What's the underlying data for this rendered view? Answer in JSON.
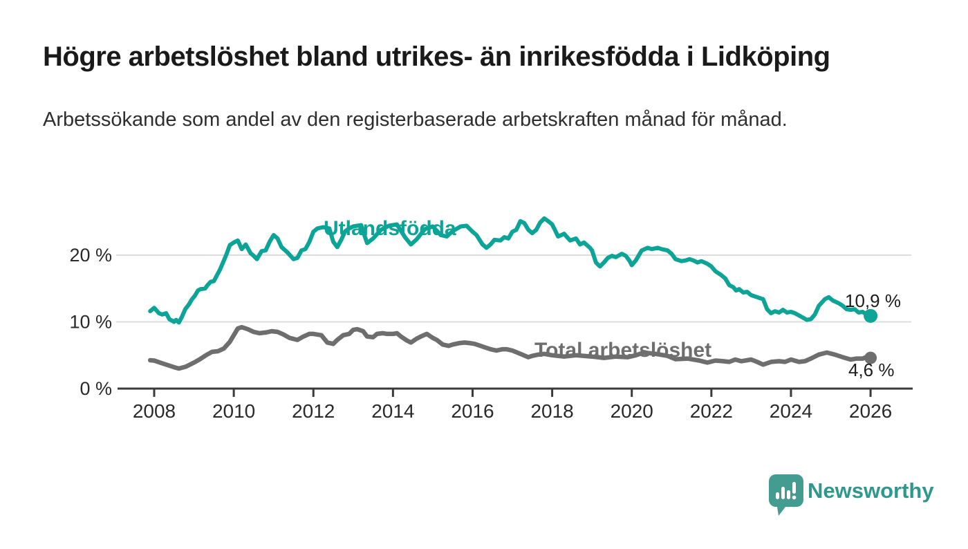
{
  "header": {
    "title": "Högre arbetslöshet bland utrikes- än inrikesfödda i Lidköping",
    "subtitle": "Arbetssökande som andel av den registerbaserade arbetskraften månad för månad."
  },
  "footer": {
    "brand": "Newsworthy"
  },
  "colors": {
    "accent_teal": "#0ca496",
    "series_gray": "#6e6e6e",
    "gridline": "#dcdcdc",
    "axis": "#3a3a3a",
    "brand_teal": "#449c91"
  },
  "chart_data": {
    "type": "line",
    "title": "Högre arbetslöshet bland utrikes- än inrikesfödda i Lidköping",
    "subtitle": "Arbetssökande som andel av den registerbaserade arbetskraften månad för månad.",
    "grid": "horizontal-only",
    "legend": "inline-labels-on-lines",
    "x_axis": {
      "range": [
        2007.7,
        2027.0
      ],
      "ticks": [
        2008,
        2010,
        2012,
        2014,
        2016,
        2018,
        2020,
        2022,
        2024,
        2026
      ],
      "tick_labels": [
        "2008",
        "2010",
        "2012",
        "2014",
        "2016",
        "2018",
        "2020",
        "2022",
        "2024",
        "2026"
      ]
    },
    "y_axis": {
      "unit": "%",
      "range": [
        0,
        27
      ],
      "ticks": [
        0,
        10,
        20
      ],
      "tick_labels": [
        "0 %",
        "10 %",
        "20 %"
      ]
    },
    "series": [
      {
        "name": "Utlandsfödda",
        "color": "#0ca496",
        "line_width": 6,
        "end_value": 10.9,
        "end_value_label": "10,9 %",
        "points": [
          [
            2007.9,
            11.6
          ],
          [
            2008.0,
            12.1
          ],
          [
            2008.12,
            11.3
          ],
          [
            2008.2,
            11.1
          ],
          [
            2008.3,
            11.3
          ],
          [
            2008.38,
            10.4
          ],
          [
            2008.5,
            10.0
          ],
          [
            2008.55,
            10.3
          ],
          [
            2008.62,
            9.9
          ],
          [
            2008.7,
            10.8
          ],
          [
            2008.78,
            11.9
          ],
          [
            2008.87,
            12.6
          ],
          [
            2008.95,
            13.4
          ],
          [
            2009.02,
            13.9
          ],
          [
            2009.1,
            14.7
          ],
          [
            2009.16,
            14.9
          ],
          [
            2009.28,
            15.0
          ],
          [
            2009.34,
            15.5
          ],
          [
            2009.42,
            16.0
          ],
          [
            2009.5,
            16.1
          ],
          [
            2009.56,
            16.8
          ],
          [
            2009.65,
            17.8
          ],
          [
            2009.73,
            18.9
          ],
          [
            2009.82,
            20.2
          ],
          [
            2009.9,
            21.5
          ],
          [
            2010.0,
            21.9
          ],
          [
            2010.1,
            22.2
          ],
          [
            2010.2,
            20.9
          ],
          [
            2010.3,
            21.6
          ],
          [
            2010.42,
            20.3
          ],
          [
            2010.5,
            19.9
          ],
          [
            2010.58,
            19.4
          ],
          [
            2010.7,
            20.6
          ],
          [
            2010.8,
            20.7
          ],
          [
            2010.9,
            22.0
          ],
          [
            2011.0,
            23.0
          ],
          [
            2011.1,
            22.5
          ],
          [
            2011.2,
            21.2
          ],
          [
            2011.35,
            20.4
          ],
          [
            2011.5,
            19.4
          ],
          [
            2011.6,
            19.6
          ],
          [
            2011.7,
            20.7
          ],
          [
            2011.8,
            20.9
          ],
          [
            2011.9,
            22.0
          ],
          [
            2012.0,
            23.5
          ],
          [
            2012.1,
            24.0
          ],
          [
            2012.25,
            24.2
          ],
          [
            2012.4,
            24.0
          ],
          [
            2012.5,
            22.0
          ],
          [
            2012.6,
            21.2
          ],
          [
            2012.7,
            22.3
          ],
          [
            2012.8,
            23.6
          ],
          [
            2012.9,
            24.0
          ],
          [
            2013.0,
            24.3
          ],
          [
            2013.2,
            24.5
          ],
          [
            2013.35,
            21.8
          ],
          [
            2013.5,
            22.5
          ],
          [
            2013.7,
            23.8
          ],
          [
            2013.9,
            24.4
          ],
          [
            2014.1,
            24.6
          ],
          [
            2014.3,
            22.7
          ],
          [
            2014.45,
            21.6
          ],
          [
            2014.6,
            22.4
          ],
          [
            2014.8,
            23.9
          ],
          [
            2015.0,
            24.3
          ],
          [
            2015.2,
            23.0
          ],
          [
            2015.35,
            22.8
          ],
          [
            2015.5,
            23.6
          ],
          [
            2015.7,
            24.3
          ],
          [
            2015.85,
            24.4
          ],
          [
            2016.0,
            23.5
          ],
          [
            2016.1,
            23.0
          ],
          [
            2016.25,
            21.6
          ],
          [
            2016.35,
            21.1
          ],
          [
            2016.45,
            21.6
          ],
          [
            2016.55,
            22.3
          ],
          [
            2016.7,
            22.2
          ],
          [
            2016.8,
            22.7
          ],
          [
            2016.9,
            22.5
          ],
          [
            2017.0,
            23.5
          ],
          [
            2017.1,
            23.8
          ],
          [
            2017.2,
            25.1
          ],
          [
            2017.3,
            24.8
          ],
          [
            2017.4,
            23.8
          ],
          [
            2017.5,
            23.3
          ],
          [
            2017.6,
            23.8
          ],
          [
            2017.7,
            24.9
          ],
          [
            2017.8,
            25.5
          ],
          [
            2017.9,
            25.1
          ],
          [
            2018.0,
            24.6
          ],
          [
            2018.15,
            22.8
          ],
          [
            2018.3,
            23.2
          ],
          [
            2018.45,
            22.2
          ],
          [
            2018.6,
            22.5
          ],
          [
            2018.7,
            21.6
          ],
          [
            2018.8,
            21.9
          ],
          [
            2018.95,
            21.1
          ],
          [
            2019.0,
            20.7
          ],
          [
            2019.1,
            18.9
          ],
          [
            2019.2,
            18.3
          ],
          [
            2019.3,
            18.9
          ],
          [
            2019.4,
            19.6
          ],
          [
            2019.5,
            19.9
          ],
          [
            2019.6,
            19.7
          ],
          [
            2019.75,
            20.2
          ],
          [
            2019.85,
            19.9
          ],
          [
            2019.95,
            19.1
          ],
          [
            2020.0,
            18.5
          ],
          [
            2020.1,
            19.2
          ],
          [
            2020.25,
            20.7
          ],
          [
            2020.4,
            21.1
          ],
          [
            2020.5,
            20.9
          ],
          [
            2020.65,
            21.1
          ],
          [
            2020.75,
            20.9
          ],
          [
            2020.9,
            20.7
          ],
          [
            2021.0,
            20.2
          ],
          [
            2021.1,
            19.4
          ],
          [
            2021.25,
            19.1
          ],
          [
            2021.35,
            19.2
          ],
          [
            2021.45,
            19.4
          ],
          [
            2021.55,
            19.2
          ],
          [
            2021.65,
            18.9
          ],
          [
            2021.75,
            19.1
          ],
          [
            2021.9,
            18.7
          ],
          [
            2022.0,
            18.3
          ],
          [
            2022.1,
            17.6
          ],
          [
            2022.25,
            17.0
          ],
          [
            2022.35,
            16.5
          ],
          [
            2022.45,
            15.5
          ],
          [
            2022.55,
            15.2
          ],
          [
            2022.62,
            14.7
          ],
          [
            2022.7,
            14.9
          ],
          [
            2022.8,
            14.4
          ],
          [
            2022.9,
            14.5
          ],
          [
            2023.0,
            14.0
          ],
          [
            2023.15,
            13.7
          ],
          [
            2023.3,
            13.4
          ],
          [
            2023.4,
            11.9
          ],
          [
            2023.5,
            11.3
          ],
          [
            2023.6,
            11.6
          ],
          [
            2023.7,
            11.4
          ],
          [
            2023.8,
            11.8
          ],
          [
            2023.9,
            11.4
          ],
          [
            2024.0,
            11.5
          ],
          [
            2024.1,
            11.3
          ],
          [
            2024.25,
            10.8
          ],
          [
            2024.4,
            10.3
          ],
          [
            2024.5,
            10.4
          ],
          [
            2024.6,
            11.1
          ],
          [
            2024.7,
            12.4
          ],
          [
            2024.85,
            13.4
          ],
          [
            2024.95,
            13.7
          ],
          [
            2025.05,
            13.2
          ],
          [
            2025.2,
            12.8
          ],
          [
            2025.3,
            12.4
          ],
          [
            2025.4,
            11.9
          ],
          [
            2025.5,
            11.8
          ],
          [
            2025.6,
            11.9
          ],
          [
            2025.7,
            11.4
          ],
          [
            2025.8,
            11.5
          ],
          [
            2025.9,
            11.1
          ],
          [
            2026.0,
            10.9
          ]
        ]
      },
      {
        "name": "Total arbetslöshet",
        "color": "#6e6e6e",
        "line_width": 6.5,
        "end_value": 4.6,
        "end_value_label": "4,6 %",
        "points": [
          [
            2007.9,
            4.25
          ],
          [
            2008.0,
            4.2
          ],
          [
            2008.15,
            3.9
          ],
          [
            2008.3,
            3.6
          ],
          [
            2008.5,
            3.2
          ],
          [
            2008.62,
            3.0
          ],
          [
            2008.8,
            3.3
          ],
          [
            2009.0,
            3.9
          ],
          [
            2009.15,
            4.4
          ],
          [
            2009.3,
            5.0
          ],
          [
            2009.45,
            5.5
          ],
          [
            2009.6,
            5.6
          ],
          [
            2009.75,
            6.0
          ],
          [
            2009.9,
            7.0
          ],
          [
            2010.0,
            8.0
          ],
          [
            2010.1,
            9.0
          ],
          [
            2010.2,
            9.2
          ],
          [
            2010.35,
            8.9
          ],
          [
            2010.5,
            8.5
          ],
          [
            2010.65,
            8.3
          ],
          [
            2010.8,
            8.4
          ],
          [
            2010.95,
            8.6
          ],
          [
            2011.1,
            8.5
          ],
          [
            2011.25,
            8.1
          ],
          [
            2011.4,
            7.6
          ],
          [
            2011.6,
            7.3
          ],
          [
            2011.75,
            7.8
          ],
          [
            2011.9,
            8.2
          ],
          [
            2012.0,
            8.2
          ],
          [
            2012.2,
            8.0
          ],
          [
            2012.35,
            6.9
          ],
          [
            2012.5,
            6.7
          ],
          [
            2012.6,
            7.3
          ],
          [
            2012.75,
            8.0
          ],
          [
            2012.9,
            8.2
          ],
          [
            2013.0,
            8.8
          ],
          [
            2013.1,
            8.9
          ],
          [
            2013.25,
            8.6
          ],
          [
            2013.35,
            7.8
          ],
          [
            2013.5,
            7.7
          ],
          [
            2013.6,
            8.2
          ],
          [
            2013.75,
            8.3
          ],
          [
            2013.85,
            8.2
          ],
          [
            2014.0,
            8.2
          ],
          [
            2014.1,
            8.3
          ],
          [
            2014.2,
            7.8
          ],
          [
            2014.35,
            7.2
          ],
          [
            2014.45,
            6.9
          ],
          [
            2014.6,
            7.5
          ],
          [
            2014.7,
            7.8
          ],
          [
            2014.85,
            8.2
          ],
          [
            2015.0,
            7.6
          ],
          [
            2015.1,
            7.3
          ],
          [
            2015.25,
            6.6
          ],
          [
            2015.4,
            6.4
          ],
          [
            2015.5,
            6.6
          ],
          [
            2015.65,
            6.8
          ],
          [
            2015.8,
            6.9
          ],
          [
            2015.95,
            6.8
          ],
          [
            2016.05,
            6.7
          ],
          [
            2016.2,
            6.4
          ],
          [
            2016.3,
            6.2
          ],
          [
            2016.45,
            5.9
          ],
          [
            2016.6,
            5.7
          ],
          [
            2016.75,
            5.9
          ],
          [
            2016.85,
            5.9
          ],
          [
            2017.0,
            5.7
          ],
          [
            2017.2,
            5.2
          ],
          [
            2017.4,
            4.7
          ],
          [
            2017.5,
            4.9
          ],
          [
            2017.65,
            5.1
          ],
          [
            2017.8,
            5.2
          ],
          [
            2018.0,
            5.0
          ],
          [
            2018.3,
            4.8
          ],
          [
            2018.6,
            5.0
          ],
          [
            2019.0,
            4.8
          ],
          [
            2019.3,
            4.6
          ],
          [
            2019.6,
            4.8
          ],
          [
            2019.9,
            4.7
          ],
          [
            2020.1,
            5.0
          ],
          [
            2020.3,
            5.4
          ],
          [
            2020.6,
            5.2
          ],
          [
            2020.9,
            4.9
          ],
          [
            2021.1,
            4.4
          ],
          [
            2021.4,
            4.5
          ],
          [
            2021.7,
            4.2
          ],
          [
            2021.9,
            3.9
          ],
          [
            2022.1,
            4.2
          ],
          [
            2022.3,
            4.1
          ],
          [
            2022.45,
            4.0
          ],
          [
            2022.6,
            4.35
          ],
          [
            2022.75,
            4.1
          ],
          [
            2023.0,
            4.35
          ],
          [
            2023.15,
            4.0
          ],
          [
            2023.3,
            3.6
          ],
          [
            2023.5,
            4.0
          ],
          [
            2023.7,
            4.1
          ],
          [
            2023.85,
            4.0
          ],
          [
            2024.0,
            4.35
          ],
          [
            2024.2,
            4.0
          ],
          [
            2024.35,
            4.1
          ],
          [
            2024.5,
            4.5
          ],
          [
            2024.7,
            5.1
          ],
          [
            2024.9,
            5.4
          ],
          [
            2025.1,
            5.1
          ],
          [
            2025.3,
            4.7
          ],
          [
            2025.5,
            4.35
          ],
          [
            2025.65,
            4.5
          ],
          [
            2025.8,
            4.5
          ],
          [
            2025.92,
            4.8
          ],
          [
            2026.0,
            4.6
          ]
        ]
      }
    ]
  }
}
